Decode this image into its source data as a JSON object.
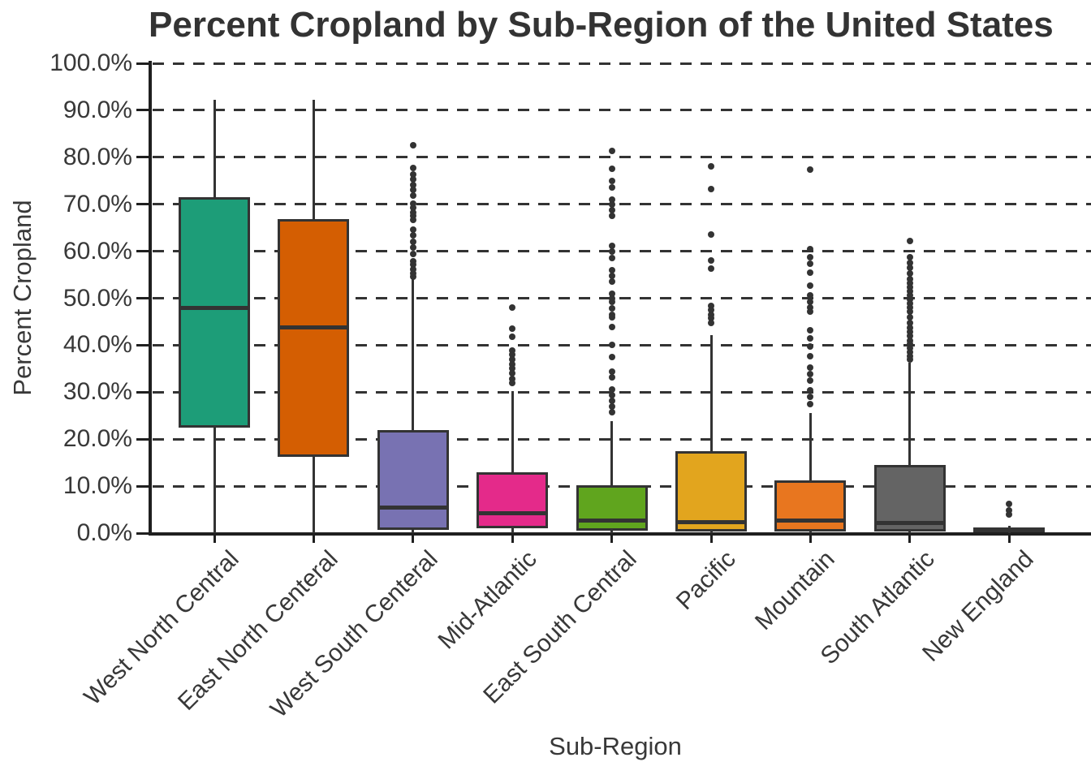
{
  "chart_data": {
    "type": "box",
    "title": "Percent Cropland by Sub-Region of the United States",
    "xlabel": "Sub-Region",
    "ylabel": "Percent Cropland",
    "ylim": [
      0,
      100
    ],
    "grid": "horizontal dashed lines every 10%",
    "legend": "none",
    "y_tick_labels": [
      "0.0%",
      "10.0%",
      "20.0%",
      "30.0%",
      "40.0%",
      "50.0%",
      "60.0%",
      "70.0%",
      "80.0%",
      "90.0%",
      "100.0%"
    ],
    "line_color": "#333333",
    "text_color": "#383838",
    "categories": [
      {
        "label": "West North Central",
        "color": "#1d9d78",
        "whisker_low": 0,
        "q1": 22.5,
        "median": 48.0,
        "q3": 71.5,
        "whisker_high": 92.3,
        "outliers": []
      },
      {
        "label": "East North Centeral",
        "color": "#d45e02",
        "whisker_low": 0,
        "q1": 16.3,
        "median": 43.8,
        "q3": 66.9,
        "whisker_high": 92.2,
        "outliers": []
      },
      {
        "label": "West South Centeral",
        "color": "#7872b2",
        "whisker_low": 0,
        "q1": 0.7,
        "median": 5.4,
        "q3": 21.9,
        "whisker_high": 54.0,
        "outliers": [
          82.5,
          77.8,
          76.4,
          75.3,
          74.1,
          73.0,
          71.8,
          70.1,
          69.2,
          68.3,
          67.5,
          66.6,
          64.6,
          63.4,
          62.0,
          60.8,
          59.4,
          57.9,
          57.1,
          56.2,
          55.3,
          54.6
        ]
      },
      {
        "label": "Mid-Atlantic",
        "color": "#e42a8a",
        "whisker_low": 0,
        "q1": 1.0,
        "median": 4.3,
        "q3": 13.0,
        "whisker_high": 30.3,
        "outliers": [
          48.1,
          43.5,
          41.8,
          38.9,
          38.0,
          36.9,
          36.0,
          35.1,
          34.0,
          32.8,
          31.9
        ]
      },
      {
        "label": "East South Central",
        "color": "#60a51e",
        "whisker_low": 0,
        "q1": 0.6,
        "median": 2.6,
        "q3": 10.2,
        "whisker_high": 23.8,
        "outliers": [
          81.3,
          77.5,
          74.9,
          73.5,
          70.9,
          70.0,
          68.8,
          67.6,
          61.1,
          59.9,
          58.6,
          55.9,
          54.7,
          53.5,
          51.0,
          49.9,
          49.2,
          47.9,
          46.5,
          45.9,
          43.9,
          40.1,
          37.5,
          34.4,
          33.2,
          30.6,
          29.3,
          28.2,
          27.0,
          25.8
        ]
      },
      {
        "label": "Pacific",
        "color": "#e2a51e",
        "whisker_low": 0,
        "q1": 0.4,
        "median": 2.4,
        "q3": 17.4,
        "whisker_high": 42.2,
        "outliers": [
          78.0,
          73.3,
          63.5,
          58.1,
          56.3,
          48.4,
          47.5,
          46.5,
          45.8,
          44.7
        ]
      },
      {
        "label": "Mountain",
        "color": "#e8761f",
        "whisker_low": 0,
        "q1": 0.4,
        "median": 2.6,
        "q3": 11.2,
        "whisker_high": 25.5,
        "outliers": [
          77.3,
          60.5,
          58.7,
          57.3,
          55.5,
          52.7,
          50.6,
          49.2,
          48.0,
          47.2,
          43.1,
          41.4,
          39.7,
          37.6,
          35.3,
          33.9,
          32.4,
          30.4,
          29.0,
          27.5
        ]
      },
      {
        "label": "South Atlantic",
        "color": "#646464",
        "whisker_low": 0,
        "q1": 0.4,
        "median": 2.2,
        "q3": 14.5,
        "whisker_high": 36.2,
        "outliers": [
          62.2,
          58.7,
          57.5,
          56.4,
          55.2,
          54.1,
          53.2,
          52.3,
          51.4,
          50.6,
          49.7,
          48.9,
          48.0,
          47.2,
          46.0,
          44.8,
          43.7,
          42.8,
          41.9,
          41.0,
          40.2,
          39.3,
          38.5,
          37.6,
          37.0
        ]
      },
      {
        "label": "New England",
        "color": "#2e2e2e",
        "whisker_low": 0,
        "q1": 0.2,
        "median": 0.6,
        "q3": 1.2,
        "whisker_high": 1.6,
        "outliers": [
          6.3,
          4.8,
          3.9
        ]
      }
    ]
  }
}
